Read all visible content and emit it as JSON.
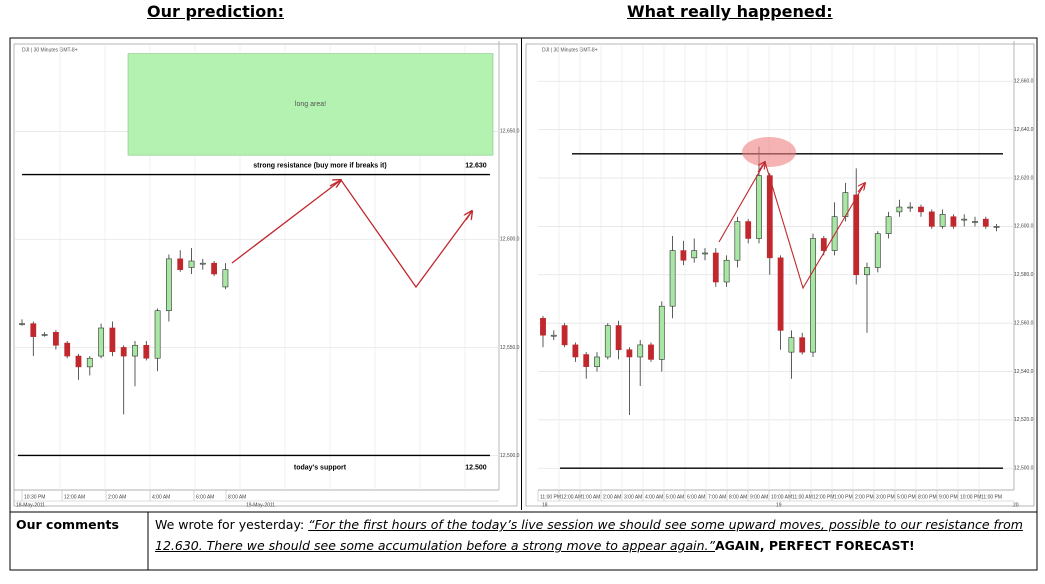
{
  "chart_data": [
    {
      "type": "candlestick",
      "title": "Our prediction:",
      "source": "DJI | 30 Minutes GMT-8+",
      "open": [
        12561,
        12561,
        12556,
        12557,
        12552,
        12546,
        12541,
        12546,
        12559,
        12550,
        12546,
        12551,
        12545,
        12567,
        12591,
        12587,
        12589,
        12589,
        12578
      ],
      "close": [
        12561,
        12555,
        12556,
        12551,
        12546,
        12541,
        12545,
        12559,
        12548,
        12546,
        12551,
        12545,
        12567,
        12591,
        12586,
        12590,
        12589,
        12584,
        12586
      ],
      "high": [
        12563,
        12562,
        12557,
        12558,
        12553,
        12547,
        12546,
        12561,
        12562,
        12551,
        12553,
        12553,
        12568,
        12593,
        12595,
        12596,
        12591,
        12590,
        12589
      ],
      "low": [
        12560,
        12546,
        12555,
        12549,
        12545,
        12535,
        12537,
        12545,
        12546,
        12519,
        12532,
        12544,
        12539,
        12562,
        12585,
        12584,
        12586,
        12583,
        12577
      ],
      "up_color": "#a8e6a3",
      "down_color": "#c0282d",
      "ylim": [
        12484,
        12690
      ],
      "yticks": [
        {
          "value": 12650,
          "label": "12,650.0"
        },
        {
          "value": 12600,
          "label": "12,600.0"
        },
        {
          "value": 12550,
          "label": "12,550.0"
        },
        {
          "value": 12500,
          "label": "12,500.0"
        }
      ],
      "xtick_labels": [
        "10:30 PM",
        "12:00 AM",
        "2:00 AM",
        "4:00 AM",
        "6:00 AM",
        "8:00 AM"
      ],
      "date_labels": [
        "18-May-2011",
        "19-May-2011"
      ],
      "grid": true,
      "zone": {
        "label": "long area!",
        "ylim": [
          12639,
          12686
        ],
        "color": "#b3f2b0"
      },
      "levels": [
        {
          "value": 12630,
          "label": "strong resistance (buy more if breaks it)",
          "value_label": "12.630"
        },
        {
          "value": 12500,
          "label": "today's support",
          "value_label": "12.500"
        }
      ]
    },
    {
      "type": "candlestick",
      "title": "What really happened:",
      "source": "DJI | 30 Minutes GMT-8+",
      "open": [
        12562,
        12555,
        12559,
        12551,
        12547,
        12542,
        12546,
        12559,
        12549,
        12546,
        12551,
        12545,
        12567,
        12590,
        12587,
        12589,
        12589,
        12577,
        12586,
        12602,
        12595,
        12621,
        12587,
        12548,
        12554,
        12548,
        12595,
        12590,
        12604,
        12613,
        12580,
        12583,
        12597,
        12606,
        12608,
        12608,
        12606,
        12600,
        12604,
        12603,
        12602,
        12603,
        12600
      ],
      "close": [
        12555,
        12555,
        12551,
        12546,
        12542,
        12546,
        12559,
        12549,
        12546,
        12551,
        12545,
        12567,
        12590,
        12586,
        12590,
        12589,
        12577,
        12586,
        12602,
        12595,
        12621,
        12587,
        12557,
        12554,
        12548,
        12595,
        12590,
        12604,
        12614,
        12580,
        12583,
        12597,
        12604,
        12608,
        12608,
        12606,
        12600,
        12605,
        12600,
        12603,
        12602,
        12600,
        12600
      ],
      "high": [
        12563,
        12557,
        12560,
        12552,
        12548,
        12548,
        12560,
        12561,
        12550,
        12553,
        12552,
        12569,
        12596,
        12594,
        12595,
        12591,
        12591,
        12588,
        12604,
        12603,
        12633,
        12622,
        12588,
        12557,
        12556,
        12597,
        12596,
        12610,
        12618,
        12624,
        12585,
        12598,
        12606,
        12611,
        12610,
        12609,
        12607,
        12607,
        12605,
        12605,
        12604,
        12604,
        12601
      ],
      "low": [
        12550,
        12553,
        12550,
        12544,
        12537,
        12540,
        12545,
        12545,
        12522,
        12534,
        12544,
        12540,
        12562,
        12584,
        12585,
        12586,
        12575,
        12575,
        12583,
        12593,
        12593,
        12580,
        12549,
        12537,
        12547,
        12546,
        12588,
        12588,
        12602,
        12576,
        12556,
        12581,
        12595,
        12604,
        12606,
        12604,
        12599,
        12599,
        12599,
        12600,
        12600,
        12599,
        12598
      ],
      "up_color": "#a8e6a3",
      "down_color": "#c0282d",
      "ylim": [
        12491,
        12675
      ],
      "yticks": [
        {
          "value": 12660,
          "label": "12,660.0"
        },
        {
          "value": 12640,
          "label": "12,640.0"
        },
        {
          "value": 12620,
          "label": "12,620.0"
        },
        {
          "value": 12600,
          "label": "12,600.0"
        },
        {
          "value": 12580,
          "label": "12,580.0"
        },
        {
          "value": 12560,
          "label": "12,560.0"
        },
        {
          "value": 12540,
          "label": "12,540.0"
        },
        {
          "value": 12520,
          "label": "12,520.0"
        },
        {
          "value": 12500,
          "label": "12,500.0"
        }
      ],
      "xtick_labels": [
        "11:00 PM",
        "12:00 AM",
        "1:00 AM",
        "2:00 AM",
        "3:00 AM",
        "4:00 AM",
        "5:00 AM",
        "6:00 AM",
        "7:00 AM",
        "8:00 AM",
        "9:00 AM",
        "10:00 AM",
        "11:00 AM",
        "12:00 PM",
        "1:00 PM",
        "2:00 PM",
        "3:00 PM",
        "5:00 PM",
        "8:00 PM",
        "9:00 PM",
        "10:00 PM",
        "11:00 PM"
      ],
      "date_labels": [
        "18",
        "19",
        "20"
      ],
      "grid": true,
      "levels": [
        {
          "value": 12630
        },
        {
          "value": 12500
        }
      ]
    }
  ],
  "comments": {
    "heading": "Our comments",
    "intro": "We wrote for yesterday: ",
    "quote": "“For the first hours of the today’s live session we should see some upward moves, possible to our resistance from 12.630. There we should see some accumulation before a strong move to appear again.”",
    "verdict": "AGAIN, PERFECT FORECAST!"
  }
}
